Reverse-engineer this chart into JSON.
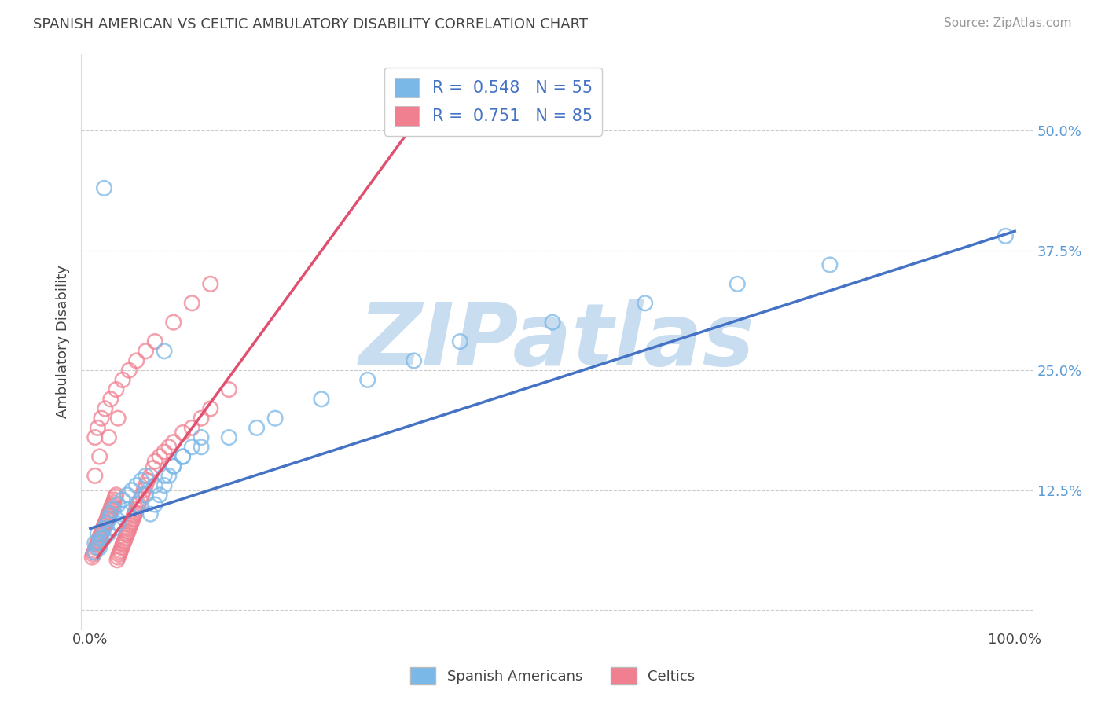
{
  "title": "SPANISH AMERICAN VS CELTIC AMBULATORY DISABILITY CORRELATION CHART",
  "source": "Source: ZipAtlas.com",
  "ylabel": "Ambulatory Disability",
  "xlim": [
    -0.01,
    1.02
  ],
  "ylim": [
    -0.02,
    0.58
  ],
  "xtick_vals": [
    0.0,
    0.25,
    0.5,
    0.75,
    1.0
  ],
  "xtick_labels": [
    "0.0%",
    "",
    "",
    "",
    "100.0%"
  ],
  "ytick_vals": [
    0.0,
    0.125,
    0.25,
    0.375,
    0.5
  ],
  "ytick_labels": [
    "",
    "12.5%",
    "25.0%",
    "37.5%",
    "50.0%"
  ],
  "blue_color": "#7ab8e8",
  "pink_color": "#f08090",
  "blue_line_color": "#4472c4",
  "pink_line_color": "#e05070",
  "R_blue": 0.548,
  "N_blue": 55,
  "R_pink": 0.751,
  "N_pink": 85,
  "legend1": "Spanish Americans",
  "legend2": "Celtics",
  "watermark": "ZIPatlas",
  "watermark_color": "#c8ddf0",
  "background_color": "#ffffff",
  "blue_line_x": [
    0.0,
    1.0
  ],
  "blue_line_y": [
    0.085,
    0.395
  ],
  "pink_line_x": [
    0.008,
    0.36
  ],
  "pink_line_y": [
    0.055,
    0.52
  ],
  "blue_scatter_x": [
    0.01,
    0.005,
    0.008,
    0.012,
    0.015,
    0.018,
    0.02,
    0.022,
    0.025,
    0.03,
    0.035,
    0.04,
    0.045,
    0.05,
    0.055,
    0.06,
    0.065,
    0.07,
    0.075,
    0.08,
    0.085,
    0.09,
    0.1,
    0.11,
    0.12,
    0.005,
    0.008,
    0.01,
    0.015,
    0.02,
    0.025,
    0.03,
    0.035,
    0.04,
    0.05,
    0.06,
    0.07,
    0.08,
    0.09,
    0.1,
    0.12,
    0.15,
    0.18,
    0.2,
    0.25,
    0.3,
    0.35,
    0.4,
    0.5,
    0.6,
    0.7,
    0.8,
    0.015,
    0.08,
    0.99
  ],
  "blue_scatter_y": [
    0.065,
    0.07,
    0.08,
    0.075,
    0.085,
    0.09,
    0.095,
    0.1,
    0.105,
    0.11,
    0.115,
    0.12,
    0.125,
    0.13,
    0.135,
    0.14,
    0.1,
    0.11,
    0.12,
    0.13,
    0.14,
    0.15,
    0.16,
    0.17,
    0.18,
    0.06,
    0.065,
    0.07,
    0.075,
    0.08,
    0.085,
    0.09,
    0.1,
    0.105,
    0.11,
    0.12,
    0.13,
    0.14,
    0.15,
    0.16,
    0.17,
    0.18,
    0.19,
    0.2,
    0.22,
    0.24,
    0.26,
    0.28,
    0.3,
    0.32,
    0.34,
    0.36,
    0.44,
    0.27,
    0.39
  ],
  "pink_scatter_x": [
    0.002,
    0.003,
    0.004,
    0.005,
    0.006,
    0.007,
    0.008,
    0.009,
    0.01,
    0.011,
    0.012,
    0.013,
    0.014,
    0.015,
    0.016,
    0.017,
    0.018,
    0.019,
    0.02,
    0.021,
    0.022,
    0.023,
    0.024,
    0.025,
    0.026,
    0.027,
    0.028,
    0.029,
    0.03,
    0.031,
    0.032,
    0.033,
    0.034,
    0.035,
    0.036,
    0.037,
    0.038,
    0.039,
    0.04,
    0.041,
    0.042,
    0.043,
    0.044,
    0.045,
    0.046,
    0.047,
    0.048,
    0.049,
    0.05,
    0.052,
    0.054,
    0.056,
    0.058,
    0.06,
    0.062,
    0.065,
    0.068,
    0.07,
    0.075,
    0.08,
    0.085,
    0.09,
    0.1,
    0.11,
    0.12,
    0.13,
    0.15,
    0.005,
    0.008,
    0.012,
    0.016,
    0.022,
    0.028,
    0.035,
    0.042,
    0.05,
    0.06,
    0.07,
    0.09,
    0.11,
    0.13,
    0.005,
    0.01,
    0.02,
    0.03
  ],
  "pink_scatter_y": [
    0.055,
    0.058,
    0.06,
    0.062,
    0.065,
    0.068,
    0.07,
    0.072,
    0.075,
    0.078,
    0.08,
    0.082,
    0.085,
    0.088,
    0.09,
    0.092,
    0.095,
    0.098,
    0.1,
    0.102,
    0.105,
    0.108,
    0.11,
    0.112,
    0.115,
    0.118,
    0.12,
    0.052,
    0.055,
    0.058,
    0.06,
    0.062,
    0.065,
    0.068,
    0.07,
    0.072,
    0.075,
    0.078,
    0.08,
    0.082,
    0.085,
    0.088,
    0.09,
    0.092,
    0.095,
    0.098,
    0.1,
    0.102,
    0.105,
    0.11,
    0.115,
    0.12,
    0.125,
    0.13,
    0.135,
    0.14,
    0.148,
    0.155,
    0.16,
    0.165,
    0.17,
    0.175,
    0.185,
    0.19,
    0.2,
    0.21,
    0.23,
    0.18,
    0.19,
    0.2,
    0.21,
    0.22,
    0.23,
    0.24,
    0.25,
    0.26,
    0.27,
    0.28,
    0.3,
    0.32,
    0.34,
    0.14,
    0.16,
    0.18,
    0.2
  ]
}
